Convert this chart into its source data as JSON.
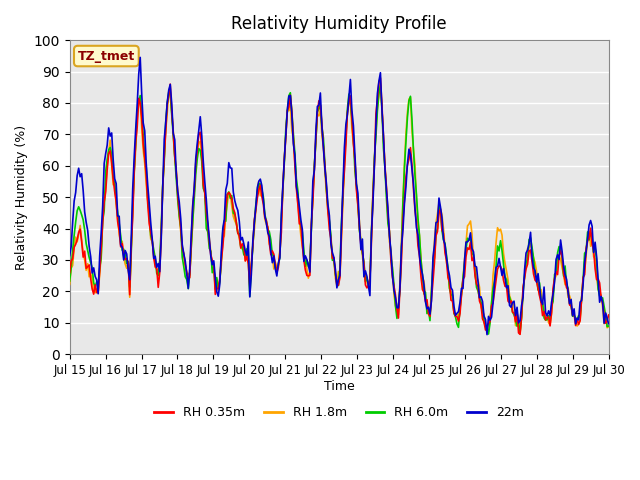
{
  "title": "Relativity Humidity Profile",
  "xlabel": "Time",
  "ylabel": "Relativity Humidity (%)",
  "ylim": [
    0,
    100
  ],
  "yticks": [
    0,
    10,
    20,
    30,
    40,
    50,
    60,
    70,
    80,
    90,
    100
  ],
  "x_labels": [
    "Jul 15",
    "Jul 16",
    "Jul 17",
    "Jul 18",
    "Jul 19",
    "Jul 20",
    "Jul 21",
    "Jul 22",
    "Jul 23",
    "Jul 24",
    "Jul 25",
    "Jul 26",
    "Jul 27",
    "Jul 28",
    "Jul 29",
    "Jul 30"
  ],
  "annotation_text": "TZ_tmet",
  "annotation_color": "#8B0000",
  "annotation_bg": "#FFFACD",
  "annotation_border": "#DAA520",
  "colors": {
    "RH 0.35m": "#FF0000",
    "RH 1.8m": "#FFA500",
    "RH 6.0m": "#00CC00",
    "22m": "#0000CD"
  },
  "line_width": 1.2,
  "bg_color": "#E8E8E8",
  "grid_color": "#FFFFFF",
  "fig_bg": "#FFFFFF",
  "peak_heights_22m": [
    60,
    74,
    90,
    88,
    73,
    59,
    55,
    84,
    82,
    86,
    88,
    65,
    48,
    38,
    30,
    36,
    34,
    41
  ],
  "trough_mins_22m": [
    28,
    22,
    27,
    26,
    24,
    19,
    32,
    28,
    26,
    22,
    21,
    13,
    14,
    12,
    10,
    11,
    13,
    11
  ],
  "peak_heights_red": [
    39,
    65,
    81,
    86,
    70,
    52,
    54,
    82,
    80,
    82,
    87,
    64,
    44,
    35,
    28,
    33,
    32,
    38
  ],
  "trough_mins_red": [
    25,
    19,
    27,
    25,
    24,
    20,
    30,
    27,
    25,
    22,
    21,
    12,
    13,
    10,
    8,
    10,
    11,
    10
  ],
  "peak_heights_org": [
    39,
    65,
    80,
    85,
    69,
    51,
    53,
    81,
    79,
    81,
    86,
    82,
    48,
    40,
    41,
    35,
    32,
    38
  ],
  "trough_mins_org": [
    25,
    19,
    27,
    25,
    24,
    20,
    30,
    27,
    25,
    22,
    21,
    12,
    13,
    10,
    8,
    10,
    11,
    10
  ],
  "peak_heights_grn": [
    48,
    66,
    83,
    84,
    66,
    52,
    55,
    83,
    80,
    83,
    86,
    82,
    46,
    37,
    35,
    36,
    32,
    40
  ],
  "trough_mins_grn": [
    25,
    20,
    28,
    25,
    23,
    20,
    30,
    28,
    26,
    22,
    21,
    12,
    13,
    10,
    8,
    10,
    11,
    10
  ]
}
